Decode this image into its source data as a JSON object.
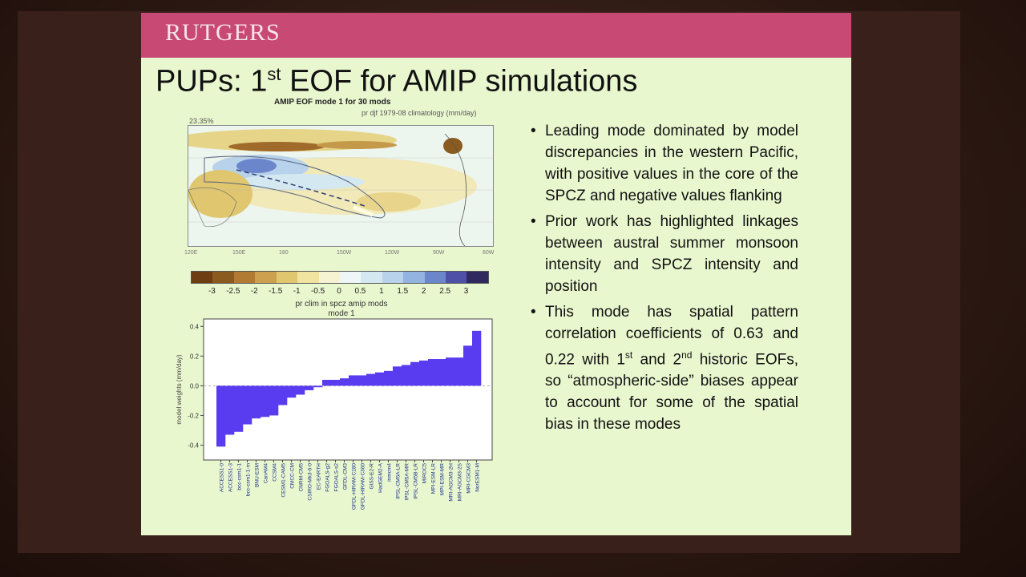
{
  "slide": {
    "logo_text": "RUTGERS",
    "title_pre": "PUPs:  1",
    "title_sup": "st",
    "title_post": " EOF for AMIP simulations"
  },
  "map": {
    "title": "AMIP EOF mode 1 for 30 mods",
    "subtitle": "pr djf 1979-08 climatology (mm/day)",
    "percent": "23.35%",
    "lon_labels": [
      "120E",
      "150E",
      "180",
      "150W",
      "120W",
      "90W",
      "60W"
    ],
    "colorbar_ticks": [
      "-3",
      "-2.5",
      "-2",
      "-1.5",
      "-1",
      "-0.5",
      "0",
      "0.5",
      "1",
      "1.5",
      "2",
      "2.5",
      "3"
    ],
    "colorbar_colors": [
      "#6e3e12",
      "#8b5a1e",
      "#b27a32",
      "#cca04e",
      "#e0c66e",
      "#f0e4a0",
      "#f5f3d2",
      "#eef6f8",
      "#d4e8f2",
      "#b8d2ec",
      "#93b4e0",
      "#6c86cc",
      "#4e50a8",
      "#2e2a60"
    ],
    "colorbar_title": "pr clim in spcz amip mods",
    "colorbar_subtitle": "mode 1"
  },
  "bullets": [
    {
      "text": "Leading mode dominated by model discrepancies in the western Pacific, with positive values in the core of the SPCZ and negative values flanking"
    },
    {
      "text": "Prior work has highlighted linkages between austral summer monsoon intensity and SPCZ intensity and position"
    },
    {
      "pre": "This mode has spatial pattern correlation coefficients of 0.63 and 0.22 with 1",
      "sup1": "st",
      "mid": " and 2",
      "sup2": "nd",
      "post": " historic EOFs, so “atmospheric-side” biases appear to account for some of the spatial bias in these modes"
    }
  ],
  "chart_data": {
    "type": "bar",
    "title": "",
    "xlabel": "",
    "ylabel": "model weights (mm/day)",
    "ylim": [
      -0.5,
      0.45
    ],
    "yticks": [
      "0.4",
      "0.2",
      "0.0",
      "-0.2",
      "-0.4"
    ],
    "ytick_values": [
      0.4,
      0.2,
      0.0,
      -0.2,
      -0.4
    ],
    "bar_color": "#5a3cf0",
    "categories": [
      "ACCESS1-0",
      "ACCESS1-3",
      "bcc-csm1-1",
      "bcc-csm1-1-m",
      "BNU-ESM",
      "CanAM4",
      "CCSM4",
      "CESM1-CAM5",
      "CMCC-CM",
      "CNRM-CM5",
      "CSIRO-Mk3-6-0",
      "EC-EARTH",
      "FGOALS-g2",
      "FGOALS-s2",
      "GFDL-CM3",
      "GFDL-HIRAM-C180",
      "GFDL-HIRAM-C360",
      "GISS-E2-R",
      "HadGEM2-A",
      "inmcm4",
      "IPSL-CM5A-LR",
      "IPSL-CM5A-MR",
      "IPSL-CM5B-LR",
      "MIROC5",
      "MPI-ESM-LR",
      "MPI-ESM-MR",
      "MRI-AGCM3-2H",
      "MRI-AGCM3-2S",
      "MRI-CGCM3",
      "NorESM1-M"
    ],
    "values": [
      -0.41,
      -0.33,
      -0.31,
      -0.26,
      -0.22,
      -0.21,
      -0.2,
      -0.13,
      -0.08,
      -0.06,
      -0.03,
      -0.01,
      0.04,
      0.04,
      0.05,
      0.07,
      0.07,
      0.08,
      0.09,
      0.1,
      0.13,
      0.14,
      0.16,
      0.17,
      0.18,
      0.18,
      0.19,
      0.19,
      0.27,
      0.37
    ]
  }
}
